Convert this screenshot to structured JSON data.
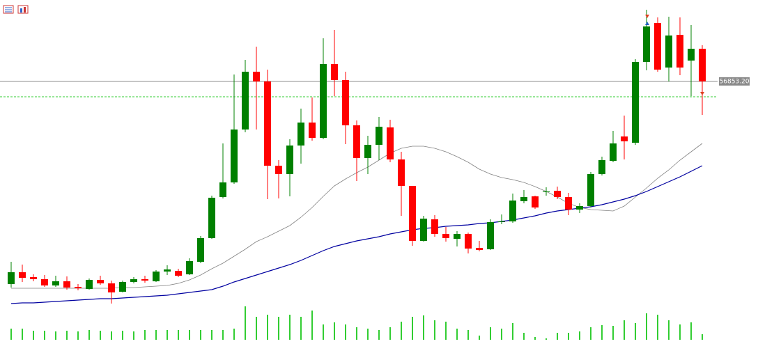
{
  "chart_data": {
    "type": "candlestick",
    "ylim": [
      48775,
      59775
    ],
    "up_color": "#008000",
    "down_color": "#ff0000",
    "open": [
      49575,
      50000,
      49825,
      49750,
      49525,
      49675,
      49475,
      49400,
      49725,
      49600,
      49300,
      49650,
      49750,
      49675,
      50025,
      50050,
      49925,
      50375,
      51225,
      52700,
      53225,
      55125,
      57200,
      56850,
      53825,
      53525,
      54550,
      55375,
      54825,
      57475,
      56900,
      55275,
      54100,
      54575,
      55200,
      54050,
      53100,
      51125,
      51900,
      51375,
      51200,
      51375,
      50875,
      50825,
      51800,
      51825,
      52550,
      52725,
      52875,
      52925,
      52700,
      52250,
      52375,
      53525,
      54000,
      54875,
      54650,
      57550,
      58950,
      57350,
      58525,
      57600,
      58025
    ],
    "high": [
      50375,
      50275,
      49925,
      49900,
      49875,
      49850,
      49575,
      49775,
      49875,
      49700,
      49700,
      49825,
      49875,
      50075,
      50250,
      50125,
      50500,
      51300,
      52750,
      54625,
      57100,
      57625,
      58100,
      57275,
      54025,
      54775,
      55875,
      56275,
      58400,
      58700,
      57200,
      55450,
      54900,
      55575,
      55475,
      54325,
      53100,
      52025,
      52050,
      51625,
      51475,
      51425,
      51125,
      51900,
      52075,
      52825,
      52950,
      52750,
      53050,
      53075,
      52850,
      52475,
      53600,
      54150,
      55075,
      55625,
      57650,
      59425,
      59150,
      59175,
      59150,
      58875,
      58150
    ],
    "low": [
      49450,
      49650,
      49675,
      49475,
      49475,
      49375,
      49350,
      49375,
      49550,
      48875,
      49275,
      49600,
      49625,
      49650,
      49900,
      49825,
      49900,
      50325,
      51200,
      52650,
      53175,
      55025,
      55125,
      52625,
      52650,
      52725,
      53900,
      54725,
      54775,
      56325,
      54600,
      53275,
      53525,
      54025,
      53950,
      52025,
      50950,
      51100,
      51275,
      51100,
      50925,
      50675,
      50750,
      50800,
      51725,
      51775,
      52475,
      52275,
      52750,
      52625,
      52050,
      52125,
      52325,
      53475,
      53950,
      54050,
      54575,
      57250,
      57200,
      56850,
      57075,
      56325,
      55650
    ],
    "close": [
      50000,
      49800,
      49750,
      49525,
      49675,
      49450,
      49425,
      49725,
      49600,
      49275,
      49650,
      49750,
      49700,
      50025,
      50100,
      49875,
      50400,
      51225,
      52675,
      53225,
      55125,
      57200,
      56850,
      53825,
      53525,
      54550,
      55375,
      54825,
      57475,
      56900,
      55275,
      54100,
      54575,
      55225,
      54050,
      53100,
      51125,
      51925,
      51375,
      51225,
      51375,
      50850,
      50800,
      51800,
      51825,
      52575,
      52700,
      52325,
      52900,
      52700,
      52250,
      52375,
      53525,
      54025,
      54625,
      54700,
      57550,
      58825,
      57275,
      58500,
      57350,
      58025,
      56853.2
    ],
    "overlays": [
      {
        "color": "#808080",
        "values": [
          49425,
          49425,
          49425,
          49425,
          49425,
          49425,
          49425,
          49425,
          49425,
          49425,
          49450,
          49450,
          49475,
          49500,
          49525,
          49600,
          49725,
          49900,
          50125,
          50325,
          50575,
          50825,
          51100,
          51275,
          51475,
          51675,
          51975,
          52325,
          52725,
          53100,
          53350,
          53575,
          53775,
          54025,
          54275,
          54450,
          54525,
          54525,
          54450,
          54325,
          54150,
          53950,
          53700,
          53525,
          53400,
          53325,
          53225,
          53075,
          52900,
          52700,
          52475,
          52325,
          52250,
          52225,
          52200,
          52375,
          52700,
          53025,
          53375,
          53675,
          54025,
          54325,
          54625
        ]
      },
      {
        "color": "#0000a0",
        "values": [
          48875,
          48900,
          48900,
          48925,
          48950,
          48975,
          49000,
          49025,
          49050,
          49050,
          49075,
          49100,
          49125,
          49150,
          49175,
          49225,
          49275,
          49325,
          49375,
          49500,
          49650,
          49775,
          49900,
          50025,
          50150,
          50275,
          50425,
          50600,
          50775,
          50925,
          51025,
          51125,
          51200,
          51275,
          51375,
          51450,
          51525,
          51575,
          51600,
          51650,
          51675,
          51700,
          51750,
          51775,
          51825,
          51875,
          51950,
          52025,
          52125,
          52200,
          52250,
          52300,
          52350,
          52425,
          52525,
          52625,
          52750,
          52900,
          53075,
          53250,
          53425,
          53625,
          53825
        ]
      }
    ],
    "volume": {
      "color": "#32cd32",
      "vlim": [
        0,
        60
      ],
      "values": [
        16,
        16,
        13,
        13,
        12,
        13,
        12,
        14,
        13,
        12,
        13,
        12,
        14,
        14,
        14,
        14,
        14,
        14,
        14,
        14,
        16,
        48,
        33,
        36,
        33,
        36,
        33,
        42,
        22,
        25,
        22,
        18,
        16,
        14,
        18,
        26,
        33,
        35,
        28,
        26,
        16,
        14,
        6,
        18,
        16,
        24,
        10,
        4,
        2,
        10,
        10,
        12,
        18,
        21,
        20,
        28,
        24,
        38,
        36,
        28,
        22,
        25,
        8
      ]
    },
    "price_line": {
      "value": 56853.2,
      "label": "56853.20"
    },
    "price_line_color": "#8a8a8a",
    "ask_line": 56300,
    "ask_line_color": "#33cc33"
  }
}
